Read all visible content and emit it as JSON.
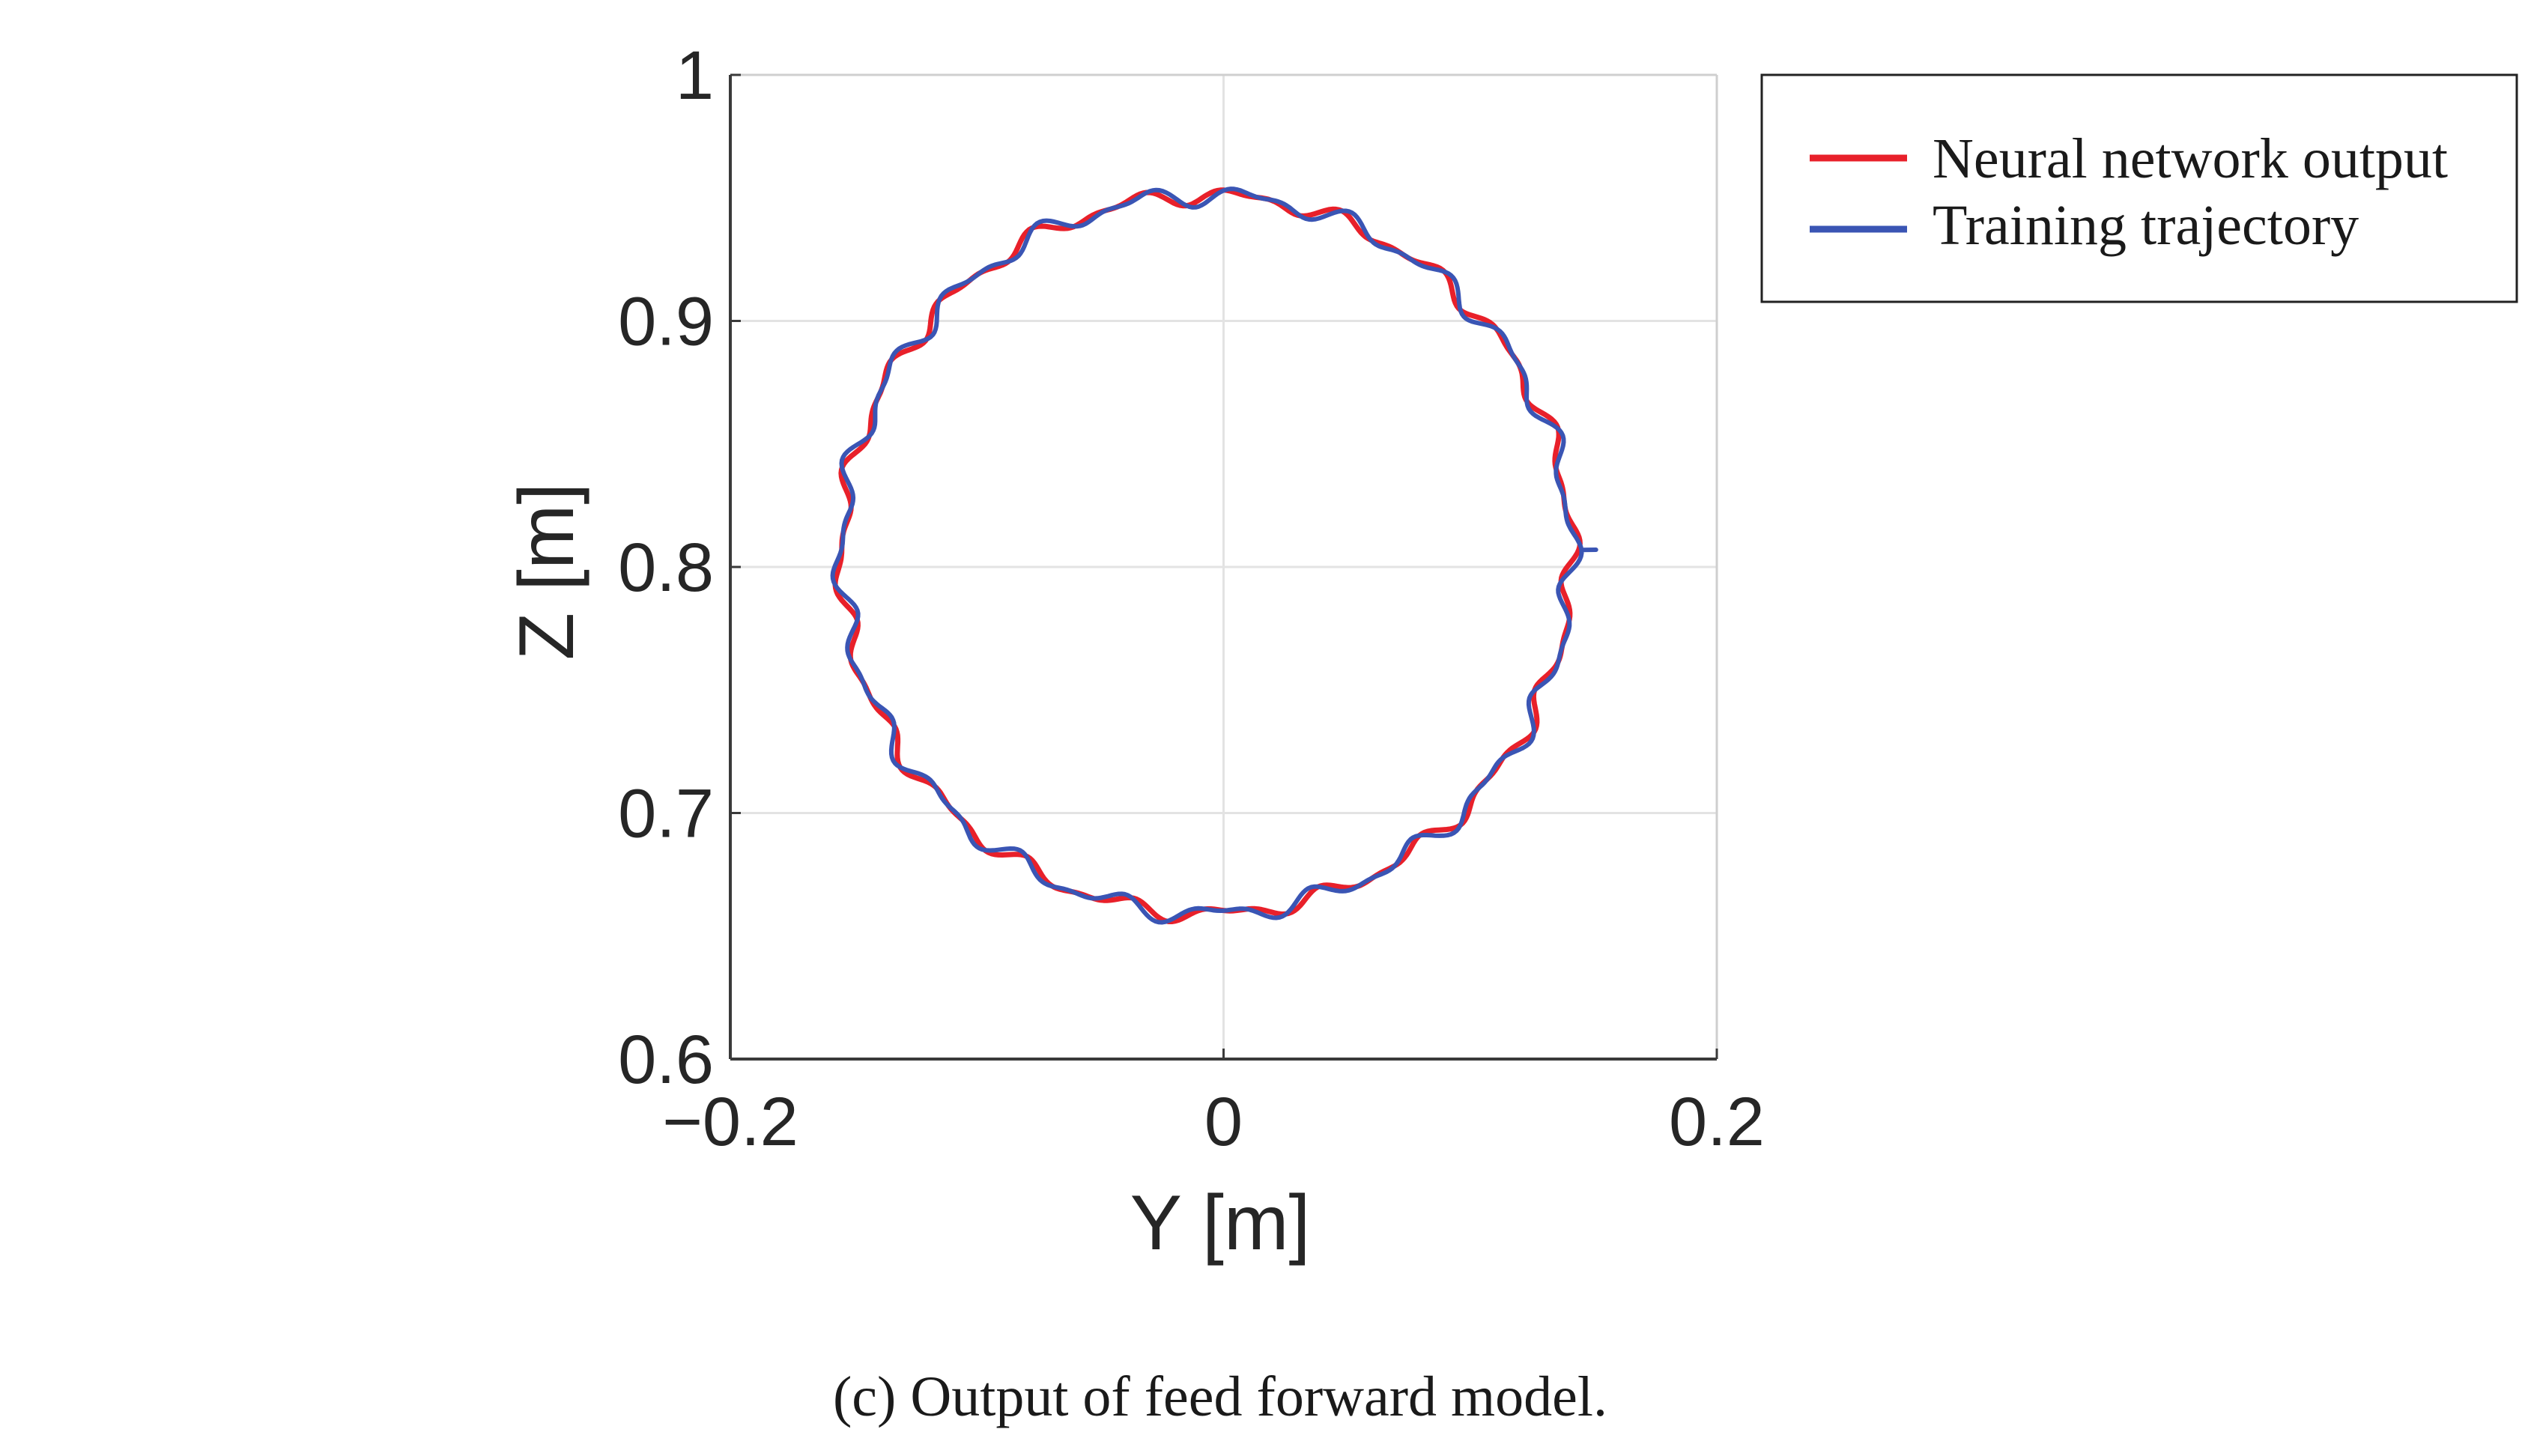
{
  "chart_data": {
    "type": "line",
    "title": "",
    "xlabel": "Y [m]",
    "ylabel": "Z [m]",
    "xlim": [
      -0.2,
      0.2
    ],
    "ylim": [
      0.6,
      1.0
    ],
    "xticks": [
      -0.2,
      0,
      0.2
    ],
    "yticks": [
      0.6,
      0.7,
      0.8,
      0.9,
      1.0
    ],
    "xtick_labels": [
      "−0.2",
      "0",
      "0.2"
    ],
    "ytick_labels": [
      "0.6",
      "0.7",
      "0.8",
      "0.9",
      "1"
    ],
    "grid": true,
    "legend_position": "outside-top-right",
    "series": [
      {
        "name": "Neural network output",
        "color": "#e8202a",
        "shape": "circle",
        "center": [
          -0.007,
          0.805
        ],
        "radius_y": 0.148,
        "radius_z": 0.146,
        "wobble_amplitude": 0.0025,
        "wobble_cycles": 22,
        "phase": 0.4
      },
      {
        "name": "Training trajectory",
        "color": "#3a55b4",
        "shape": "circle",
        "center": [
          -0.007,
          0.805
        ],
        "radius_y": 0.148,
        "radius_z": 0.146,
        "wobble_amplitude": 0.003,
        "wobble_cycles": 22,
        "phase": 0.9,
        "endpoint": [
          0.151,
          0.807
        ]
      }
    ]
  },
  "caption": "(c) Output of feed forward model."
}
